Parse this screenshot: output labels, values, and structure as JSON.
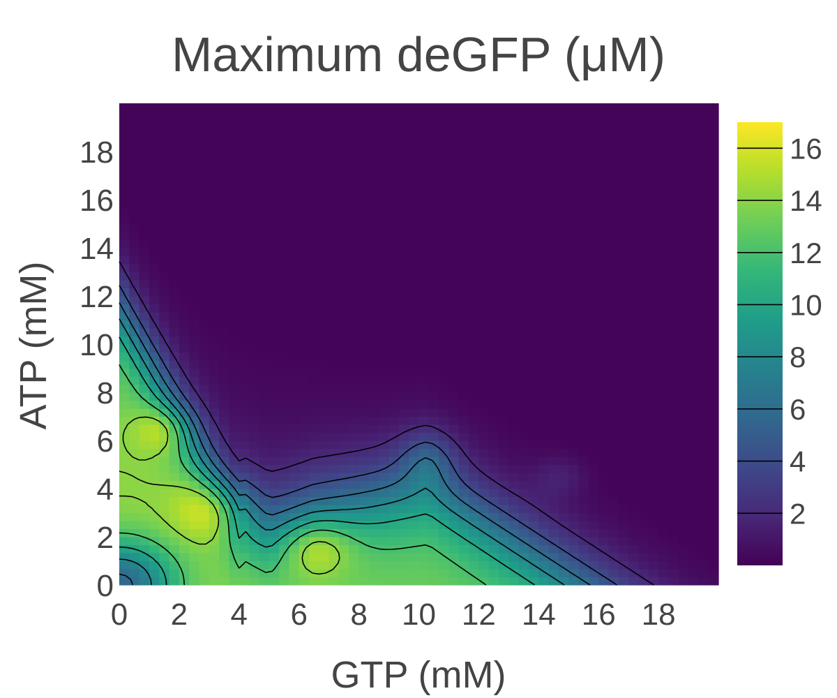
{
  "chart_data": {
    "type": "heatmap",
    "title": "Maximum deGFP (μM)",
    "xlabel": "GTP (mM)",
    "ylabel": "ATP (mM)",
    "xlim": [
      0,
      20
    ],
    "ylim": [
      0,
      20
    ],
    "x_ticks": [
      "0",
      "2",
      "4",
      "6",
      "8",
      "10",
      "12",
      "14",
      "16",
      "18"
    ],
    "y_ticks": [
      "0",
      "2",
      "4",
      "6",
      "8",
      "10",
      "12",
      "14",
      "16",
      "18"
    ],
    "colorbar": {
      "range": [
        0,
        17
      ],
      "ticks": [
        "2",
        "4",
        "6",
        "8",
        "10",
        "12",
        "14",
        "16"
      ],
      "colormap": "viridis",
      "colors": [
        "#440154",
        "#482878",
        "#3e4989",
        "#31688e",
        "#26828e",
        "#1f9e89",
        "#35b779",
        "#6ece58",
        "#b5de2b",
        "#fde725"
      ]
    },
    "contour_levels": [
      2,
      4,
      6,
      8,
      10,
      12,
      14,
      16
    ],
    "peaks": [
      {
        "x": 3.2,
        "y": 3.2,
        "value": 16.8
      },
      {
        "x": 6.6,
        "y": 1.6,
        "value": 16.8
      },
      {
        "x": 1.5,
        "y": 6.5,
        "value": 12.6
      },
      {
        "x": 10.3,
        "y": 5.2,
        "value": 10.5
      }
    ],
    "grid": false,
    "legend": "colorbar-right"
  }
}
